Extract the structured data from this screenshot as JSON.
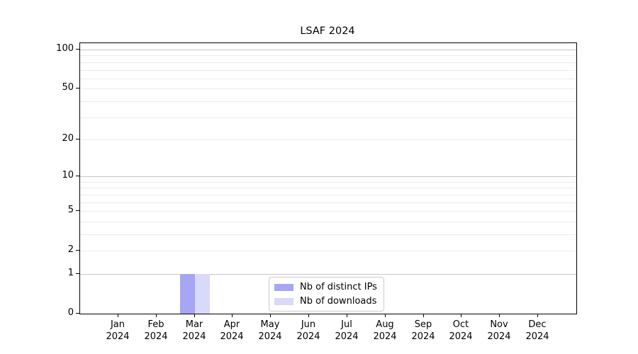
{
  "chart_data": {
    "type": "bar",
    "title": "LSAF 2024",
    "categories": [
      "Jan 2024",
      "Feb 2024",
      "Mar 2024",
      "Apr 2024",
      "May 2024",
      "Jun 2024",
      "Jul 2024",
      "Aug 2024",
      "Sep 2024",
      "Oct 2024",
      "Nov 2024",
      "Dec 2024"
    ],
    "month_labels": [
      "Jan",
      "Feb",
      "Mar",
      "Apr",
      "May",
      "Jun",
      "Jul",
      "Aug",
      "Sep",
      "Oct",
      "Nov",
      "Dec"
    ],
    "year_label": "2024",
    "series": [
      {
        "name": "Nb of distinct IPs",
        "color": "#a6a6f4",
        "values": [
          0,
          0,
          1,
          0,
          0,
          0,
          0,
          0,
          0,
          0,
          0,
          0
        ]
      },
      {
        "name": "Nb of downloads",
        "color": "#d9d9f9",
        "values": [
          0,
          0,
          1,
          0,
          0,
          0,
          0,
          0,
          0,
          0,
          0,
          0
        ]
      }
    ],
    "xlabel": "",
    "ylabel": "",
    "yscale": "log1p",
    "ylim": [
      0,
      112
    ],
    "yticks": [
      0,
      1,
      2,
      5,
      10,
      20,
      50,
      100
    ],
    "major_grid_values": [
      1,
      10,
      100
    ],
    "minor_grid_values": [
      2,
      3,
      4,
      5,
      6,
      7,
      8,
      9,
      20,
      30,
      40,
      50,
      60,
      70,
      80,
      90
    ],
    "grid": "horizontal",
    "legend_position": "lower center",
    "colors": {
      "major_grid": "#c6c6c6",
      "minor_grid": "#ececec",
      "axis": "#000000",
      "legend_border": "#cccccc",
      "background": "#ffffff"
    }
  }
}
